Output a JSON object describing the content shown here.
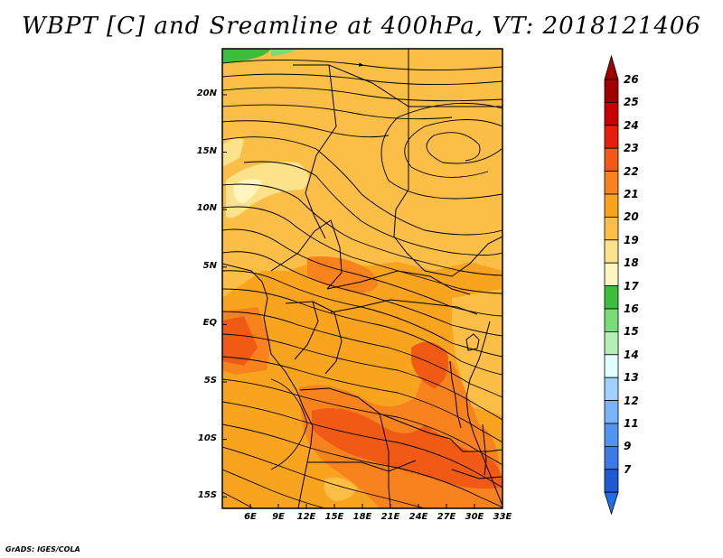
{
  "title": "WBPT [C] and Sreamline at 400hPa, VT: 2018121406",
  "footer": "GrADS: IGES/COLA",
  "map": {
    "lon_range": [
      3,
      33
    ],
    "lat_range": [
      -16,
      24
    ],
    "lat_ticks": [
      {
        "value": 20,
        "label": "20N"
      },
      {
        "value": 15,
        "label": "15N"
      },
      {
        "value": 10,
        "label": "10N"
      },
      {
        "value": 5,
        "label": "5N"
      },
      {
        "value": 0,
        "label": "EQ"
      },
      {
        "value": -5,
        "label": "5S"
      },
      {
        "value": -10,
        "label": "10S"
      },
      {
        "value": -15,
        "label": "15S"
      }
    ],
    "lon_ticks": [
      {
        "value": 6,
        "label": "6E"
      },
      {
        "value": 9,
        "label": "9E"
      },
      {
        "value": 12,
        "label": "12E"
      },
      {
        "value": 15,
        "label": "15E"
      },
      {
        "value": 18,
        "label": "18E"
      },
      {
        "value": 21,
        "label": "21E"
      },
      {
        "value": 24,
        "label": "24E"
      },
      {
        "value": 27,
        "label": "27E"
      },
      {
        "value": 30,
        "label": "30E"
      },
      {
        "value": 33,
        "label": "33E"
      }
    ]
  },
  "colorbar": {
    "levels": [
      {
        "label": "26",
        "color": "#a00000"
      },
      {
        "label": "25",
        "color": "#c80000"
      },
      {
        "label": "24",
        "color": "#e61e10"
      },
      {
        "label": "23",
        "color": "#f05a14"
      },
      {
        "label": "22",
        "color": "#f7821e"
      },
      {
        "label": "21",
        "color": "#f9a41e"
      },
      {
        "label": "20",
        "color": "#fbbe46"
      },
      {
        "label": "19",
        "color": "#fde28c"
      },
      {
        "label": "18",
        "color": "#fff5be"
      },
      {
        "label": "17",
        "color": "#3cbe3c"
      },
      {
        "label": "16",
        "color": "#78dc78"
      },
      {
        "label": "15",
        "color": "#b4f0b4"
      },
      {
        "label": "14",
        "color": "#e1ffff"
      },
      {
        "label": "13",
        "color": "#a0d2ff"
      },
      {
        "label": "12",
        "color": "#78b4fa"
      },
      {
        "label": "11",
        "color": "#5096f0"
      },
      {
        "label": "9",
        "color": "#3c78e6"
      },
      {
        "label": "7",
        "color": "#1e5ad2"
      }
    ],
    "top_triangle_color": "#a00000",
    "bottom_triangle_color": "#1e6ee6"
  }
}
